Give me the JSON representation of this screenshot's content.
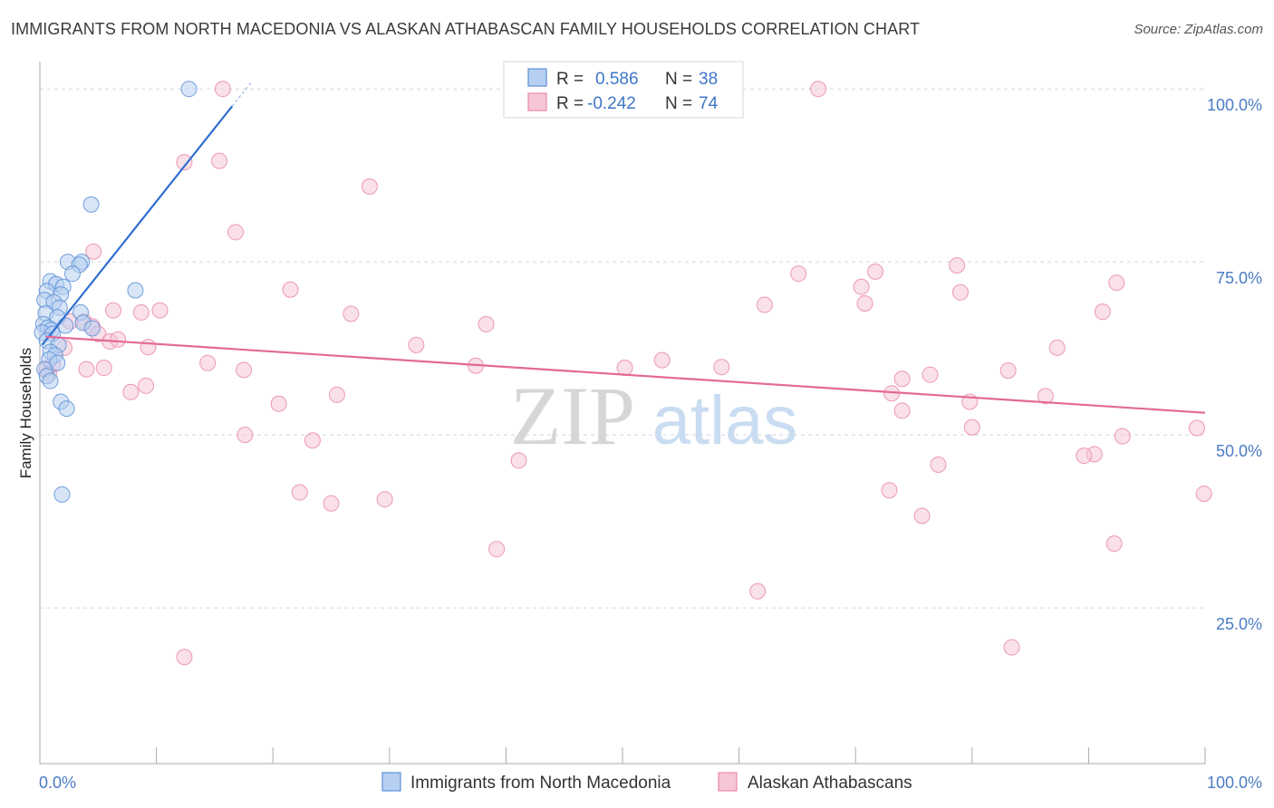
{
  "title": "IMMIGRANTS FROM NORTH MACEDONIA VS ALASKAN ATHABASCAN FAMILY HOUSEHOLDS CORRELATION CHART",
  "source": "Source: ZipAtlas.com",
  "watermark": {
    "zip": "ZIP",
    "atlas": "atlas"
  },
  "colors": {
    "blue": "#5b8fd6",
    "blue_fill": "#b7d0f1",
    "blue_line": "#2f6fd0",
    "pink": "#e98aa8",
    "pink_fill": "#f6c6d5",
    "pink_line": "#e36a93",
    "axis_label": "#4a7cc4",
    "grid": "#cfd6e0"
  },
  "chart_data": {
    "type": "scatter",
    "ylabel": "Family Households",
    "x_tick_labels": [
      "0.0%",
      "100.0%"
    ],
    "y_tick_labels": [
      "100.0%",
      "75.0%",
      "50.0%",
      "25.0%"
    ],
    "y_ticks": [
      100,
      75,
      50,
      25
    ],
    "xlim": [
      0,
      100
    ],
    "ylim": [
      2.5,
      105
    ],
    "grid": "horizontal dashed",
    "legend": {
      "placement": "top-center",
      "entries": [
        {
          "r_label": "R =",
          "r_value": "0.586",
          "n_label": "N =",
          "n_value": "38"
        },
        {
          "r_label": "R =",
          "r_value": "-0.242",
          "n_label": "N =",
          "n_value": "74"
        }
      ]
    },
    "series": [
      {
        "name": "Immigrants from North Macedonia",
        "color": "blue",
        "trend": {
          "x": [
            0.2,
            16.5
          ],
          "y": [
            63.0,
            97.5
          ]
        },
        "points": [
          [
            12.8,
            100.0
          ],
          [
            4.4,
            83.3
          ],
          [
            2.4,
            75.0
          ],
          [
            3.6,
            75.0
          ],
          [
            3.4,
            74.6
          ],
          [
            2.8,
            73.3
          ],
          [
            0.9,
            72.2
          ],
          [
            1.4,
            71.8
          ],
          [
            2.0,
            71.4
          ],
          [
            0.6,
            70.8
          ],
          [
            1.8,
            70.3
          ],
          [
            8.2,
            70.9
          ],
          [
            0.4,
            69.5
          ],
          [
            1.2,
            69.2
          ],
          [
            1.7,
            68.4
          ],
          [
            0.5,
            67.6
          ],
          [
            3.5,
            67.7
          ],
          [
            1.5,
            67.0
          ],
          [
            0.3,
            66.0
          ],
          [
            3.7,
            66.2
          ],
          [
            4.5,
            65.4
          ],
          [
            0.7,
            65.5
          ],
          [
            1.0,
            65.2
          ],
          [
            0.2,
            64.8
          ],
          [
            2.2,
            65.8
          ],
          [
            1.1,
            64.6
          ],
          [
            0.6,
            63.6
          ],
          [
            1.6,
            63.0
          ],
          [
            0.9,
            62.0
          ],
          [
            1.3,
            61.5
          ],
          [
            0.8,
            60.9
          ],
          [
            1.5,
            60.4
          ],
          [
            0.4,
            59.5
          ],
          [
            0.6,
            58.5
          ],
          [
            0.9,
            57.8
          ],
          [
            1.8,
            54.8
          ],
          [
            2.3,
            53.8
          ],
          [
            1.9,
            41.4
          ]
        ]
      },
      {
        "name": "Alaskan Athabascans",
        "color": "pink",
        "trend": {
          "x": [
            0.5,
            100.0
          ],
          "y": [
            64.2,
            53.2
          ]
        },
        "points": [
          [
            15.7,
            100.0
          ],
          [
            66.8,
            100.0
          ],
          [
            12.4,
            89.4
          ],
          [
            15.4,
            89.6
          ],
          [
            28.3,
            85.9
          ],
          [
            16.8,
            79.3
          ],
          [
            4.6,
            76.5
          ],
          [
            21.5,
            71.0
          ],
          [
            6.3,
            68.0
          ],
          [
            8.7,
            67.7
          ],
          [
            10.3,
            68.0
          ],
          [
            26.7,
            67.5
          ],
          [
            38.3,
            66.0
          ],
          [
            3.8,
            66.4
          ],
          [
            2.6,
            66.4
          ],
          [
            4.5,
            65.7
          ],
          [
            5.0,
            64.6
          ],
          [
            6.0,
            63.5
          ],
          [
            6.7,
            63.8
          ],
          [
            9.3,
            62.7
          ],
          [
            2.1,
            62.6
          ],
          [
            32.3,
            63.0
          ],
          [
            14.4,
            60.4
          ],
          [
            4.0,
            59.5
          ],
          [
            5.5,
            59.7
          ],
          [
            17.5,
            59.4
          ],
          [
            37.4,
            60.0
          ],
          [
            50.2,
            59.7
          ],
          [
            53.4,
            60.8
          ],
          [
            58.5,
            59.8
          ],
          [
            7.8,
            56.2
          ],
          [
            9.1,
            57.1
          ],
          [
            20.5,
            54.5
          ],
          [
            25.5,
            55.8
          ],
          [
            17.6,
            50.0
          ],
          [
            23.4,
            49.2
          ],
          [
            41.1,
            46.3
          ],
          [
            22.3,
            41.7
          ],
          [
            25.0,
            40.1
          ],
          [
            29.6,
            40.7
          ],
          [
            39.2,
            33.5
          ],
          [
            61.6,
            27.4
          ],
          [
            12.4,
            17.9
          ],
          [
            65.1,
            73.3
          ],
          [
            70.5,
            71.4
          ],
          [
            71.7,
            73.6
          ],
          [
            78.7,
            74.5
          ],
          [
            79.0,
            70.6
          ],
          [
            92.4,
            72.0
          ],
          [
            62.2,
            68.8
          ],
          [
            70.8,
            69.0
          ],
          [
            91.2,
            67.8
          ],
          [
            87.3,
            62.6
          ],
          [
            83.1,
            59.3
          ],
          [
            76.4,
            58.7
          ],
          [
            74.0,
            58.1
          ],
          [
            73.1,
            56.0
          ],
          [
            86.3,
            55.6
          ],
          [
            79.8,
            54.8
          ],
          [
            74.0,
            53.5
          ],
          [
            80.0,
            51.1
          ],
          [
            92.9,
            49.8
          ],
          [
            99.3,
            51.0
          ],
          [
            90.5,
            47.2
          ],
          [
            89.6,
            47.0
          ],
          [
            77.1,
            45.7
          ],
          [
            72.9,
            42.0
          ],
          [
            75.7,
            38.3
          ],
          [
            92.2,
            34.3
          ],
          [
            99.9,
            41.5
          ],
          [
            83.4,
            19.3
          ],
          [
            0.6,
            59.6
          ],
          [
            0.8,
            58.9
          ],
          [
            1.1,
            60.2
          ]
        ]
      }
    ]
  }
}
